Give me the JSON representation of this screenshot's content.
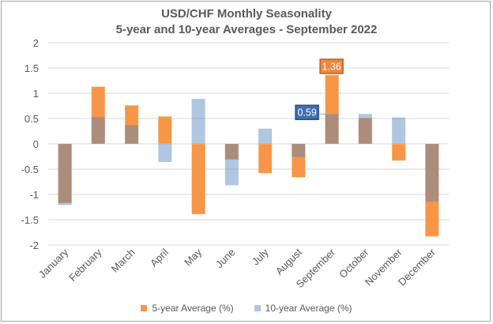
{
  "chart_data": {
    "type": "bar",
    "title": "USD/CHF Monthly Seasonality",
    "subtitle": "5-year and 10-year Averages - September 2022",
    "categories": [
      "January",
      "February",
      "March",
      "April",
      "May",
      "June",
      "July",
      "August",
      "September",
      "October",
      "November",
      "December"
    ],
    "series": [
      {
        "name": "5-year Average (%)",
        "color": "#F79646",
        "values": [
          -1.17,
          1.13,
          0.76,
          0.54,
          -1.39,
          -0.31,
          -0.58,
          -0.66,
          1.36,
          0.51,
          -0.33,
          -1.83
        ]
      },
      {
        "name": "10-year Average (%)",
        "color": "#4F81BD",
        "values": [
          -1.21,
          0.53,
          0.37,
          -0.36,
          0.89,
          -0.82,
          0.3,
          -0.26,
          0.59,
          0.59,
          0.52,
          -1.14
        ]
      }
    ],
    "yticks": [
      "2",
      "1.5",
      "1",
      "0.5",
      "0",
      "-0.5",
      "-1",
      "-1.5",
      "-2"
    ],
    "ylim": [
      -2,
      2
    ],
    "grid": true,
    "legend_position": "bottom",
    "annotations": [
      {
        "category": "September",
        "series": "5-year Average (%)",
        "text": "1.36"
      },
      {
        "category": "September",
        "series": "10-year Average (%)",
        "text": "0.59"
      }
    ]
  }
}
